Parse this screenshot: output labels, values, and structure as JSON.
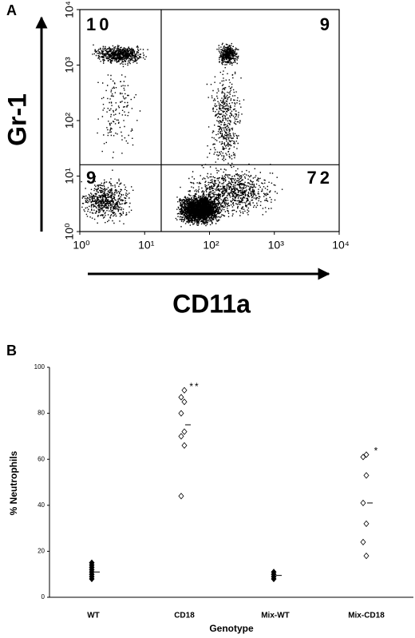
{
  "chart_data": [
    {
      "type": "flow",
      "panel": "A",
      "xlabel": "CD11a",
      "ylabel": "Gr-1",
      "xscale": "log",
      "yscale": "log",
      "xlim": [
        1,
        10000
      ],
      "ylim": [
        1,
        10000
      ],
      "xticks": [
        {
          "value": 1,
          "label": "10⁰"
        },
        {
          "value": 10,
          "label": "10¹"
        },
        {
          "value": 100,
          "label": "10²"
        },
        {
          "value": 1000,
          "label": "10³"
        },
        {
          "value": 10000,
          "label": "10⁴"
        }
      ],
      "yticks": [
        {
          "value": 1,
          "label": "10⁰"
        },
        {
          "value": 10,
          "label": "10¹"
        },
        {
          "value": 100,
          "label": "10²"
        },
        {
          "value": 1000,
          "label": "10³"
        },
        {
          "value": 10000,
          "label": "10⁴"
        }
      ],
      "xgate": 18,
      "ygate": 16,
      "quadrants": [
        "top-left",
        "top-right",
        "bottom-left",
        "bottom-right"
      ],
      "values": [
        10,
        9,
        9,
        72
      ]
    },
    {
      "type": "strip",
      "panel": "B",
      "xlabel": "Genotype",
      "ylabel": "% Neutrophils",
      "categories": [
        "WT",
        "CD18",
        "Mix-WT",
        "Mix-CD18"
      ],
      "markers": [
        "filled",
        "open",
        "filled",
        "open"
      ],
      "values": [
        [
          8,
          9,
          10,
          11,
          12,
          13,
          14,
          15
        ],
        [
          90,
          87,
          85,
          80,
          72,
          70,
          66,
          44
        ],
        [
          8,
          9,
          10,
          11
        ],
        [
          62,
          61,
          53,
          41,
          32,
          24,
          18
        ]
      ],
      "means": [
        11,
        75,
        9.5,
        41
      ],
      "annotations": [
        null,
        "**",
        null,
        "*"
      ],
      "ylim": [
        0,
        100
      ],
      "yticks": [
        0,
        20,
        40,
        60,
        80,
        100
      ]
    }
  ]
}
